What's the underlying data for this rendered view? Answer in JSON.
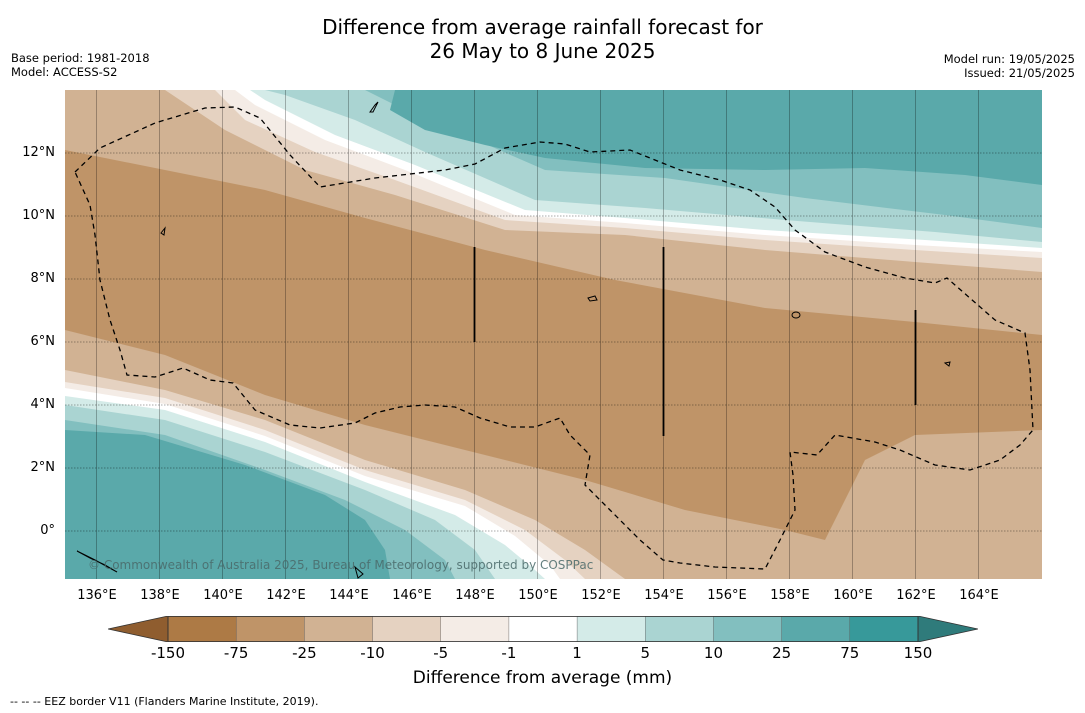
{
  "title_line1": "Difference from average rainfall forecast for",
  "title_line2": "26 May to 8 June 2025",
  "base_period": "Base period: 1981-2018",
  "model": "Model: ACCESS-S2",
  "model_run": "Model run: 19/05/2025",
  "issued": "Issued: 21/05/2025",
  "copyright": "© Commonwealth of Australia 2025, Bureau of Meteorology, supported by COSPPac",
  "footnote": "-- -- -- EEZ border V11 (Flanders Marine Institute, 2019).",
  "legend": {
    "title": "Difference from average (mm)",
    "ticks": [
      "-150",
      "-75",
      "-25",
      "-10",
      "-5",
      "-1",
      "1",
      "5",
      "10",
      "25",
      "75",
      "150"
    ],
    "colors": [
      "#8f5d2f",
      "#ad7a45",
      "#bf9468",
      "#d1b293",
      "#e5d2c1",
      "#f4ece6",
      "#ffffff",
      "#d4ebe8",
      "#aad4d2",
      "#82bfbf",
      "#5aa9aa",
      "#37999a",
      "#2f7b7b"
    ]
  },
  "map": {
    "lon_min": 135,
    "lon_max": 166,
    "lat_min": -1.5,
    "lat_max": 14,
    "lon_ticks": [
      "136°E",
      "138°E",
      "140°E",
      "142°E",
      "144°E",
      "146°E",
      "148°E",
      "150°E",
      "152°E",
      "154°E",
      "156°E",
      "158°E",
      "160°E",
      "162°E",
      "164°E"
    ],
    "lat_ticks": [
      "12°N",
      "10°N",
      "8°N",
      "6°N",
      "4°N",
      "2°N",
      "0°"
    ]
  }
}
